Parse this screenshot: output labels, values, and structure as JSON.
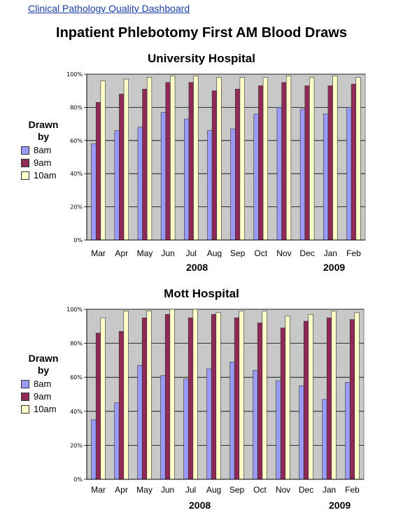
{
  "header": {
    "link_text": "Clinical Pathology Quality Dashboard"
  },
  "page_title": "Inpatient Phlebotomy First AM Blood Draws",
  "colors": {
    "8am": "#9a9afa",
    "9am": "#8e2a55",
    "10am": "#ffffc8",
    "plot_bg": "#c8c8c8",
    "gridline": "#000000"
  },
  "chart_data": [
    {
      "type": "bar",
      "title": "University Hospital",
      "categories": [
        "Mar",
        "Apr",
        "May",
        "Jun",
        "Jul",
        "Aug",
        "Sep",
        "Oct",
        "Nov",
        "Dec",
        "Jan",
        "Feb"
      ],
      "year_labels": [
        "2008",
        "2009"
      ],
      "legend": {
        "title_line1": "Drawn",
        "title_line2": "by"
      },
      "series": [
        {
          "name": "8am",
          "values": [
            58,
            66,
            68,
            77,
            73,
            66,
            67,
            76,
            80,
            79,
            76,
            80
          ]
        },
        {
          "name": "9am",
          "values": [
            83,
            88,
            91,
            95,
            95,
            90,
            91,
            93,
            95,
            93,
            93,
            94
          ]
        },
        {
          "name": "10am",
          "values": [
            96,
            97,
            98,
            99,
            99,
            98,
            98,
            98,
            99,
            98,
            99,
            98
          ]
        }
      ],
      "ylim": [
        0,
        100
      ],
      "yticks": [
        "0%",
        "20%",
        "40%",
        "60%",
        "80%",
        "100%"
      ],
      "grid": true,
      "legend_placement": "left"
    },
    {
      "type": "bar",
      "title": "Mott Hospital",
      "categories": [
        "Mar",
        "Apr",
        "May",
        "Jun",
        "Jul",
        "Aug",
        "Sep",
        "Oct",
        "Nov",
        "Dec",
        "Jan",
        "Feb"
      ],
      "year_labels": [
        "2008",
        "2009"
      ],
      "legend": {
        "title_line1": "Drawn",
        "title_line2": "by"
      },
      "series": [
        {
          "name": "8am",
          "values": [
            35,
            45,
            67,
            61,
            59,
            65,
            69,
            64,
            58,
            55,
            47,
            57
          ]
        },
        {
          "name": "9am",
          "values": [
            86,
            87,
            95,
            97,
            95,
            97,
            95,
            92,
            89,
            93,
            95,
            94
          ]
        },
        {
          "name": "10am",
          "values": [
            95,
            99,
            99,
            100,
            100,
            98,
            99,
            99,
            96,
            97,
            99,
            98
          ]
        }
      ],
      "ylim": [
        0,
        100
      ],
      "yticks": [
        "0%",
        "20%",
        "40%",
        "60%",
        "80%",
        "100%"
      ],
      "grid": true,
      "legend_placement": "left"
    }
  ]
}
